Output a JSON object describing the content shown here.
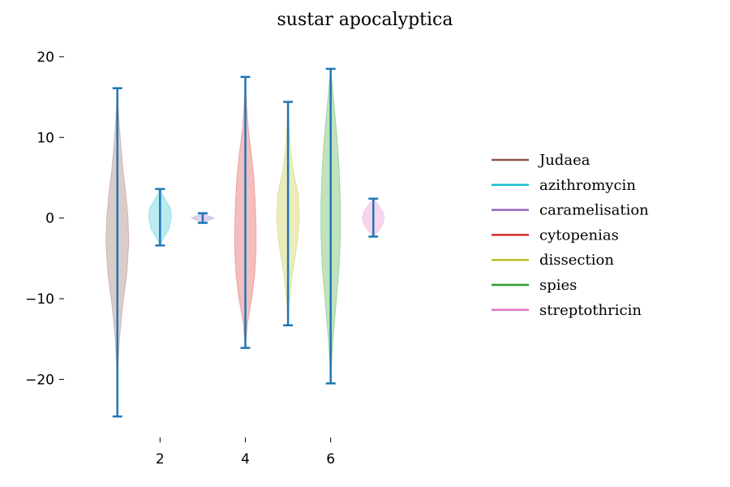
{
  "chart_data": {
    "type": "violin",
    "title": "sustar apocalyptica",
    "xlabel": "",
    "ylabel": "",
    "xlim": [
      0.15,
      7.85
    ],
    "ylim": [
      -26.2,
      21.7
    ],
    "xticks": [
      2,
      4,
      6
    ],
    "yticks": [
      20,
      10,
      0,
      -10,
      -20
    ],
    "ytick_labels": [
      "20",
      "10",
      "0",
      "−10",
      "−20"
    ],
    "legend_position": "right",
    "whisker_color": "#1f77b4",
    "series": [
      {
        "name": "Judaea",
        "position": 1,
        "color": "#8c564b",
        "min": -24.6,
        "max": 16.1,
        "profile": [
          [
            -24.6,
            0
          ],
          [
            -19,
            0.01
          ],
          [
            -15,
            0.05
          ],
          [
            -11,
            0.12
          ],
          [
            -7,
            0.22
          ],
          [
            -3,
            0.27
          ],
          [
            0,
            0.25
          ],
          [
            3,
            0.2
          ],
          [
            6,
            0.13
          ],
          [
            9,
            0.08
          ],
          [
            12,
            0.04
          ],
          [
            14,
            0.02
          ],
          [
            16.1,
            0
          ]
        ]
      },
      {
        "name": "azithromycin",
        "position": 2,
        "color": "#17becf",
        "min": -3.4,
        "max": 3.6,
        "profile": [
          [
            -3.4,
            0
          ],
          [
            -2.5,
            0.08
          ],
          [
            -1.5,
            0.2
          ],
          [
            0,
            0.27
          ],
          [
            1.2,
            0.25
          ],
          [
            2.2,
            0.14
          ],
          [
            3,
            0.05
          ],
          [
            3.6,
            0
          ]
        ]
      },
      {
        "name": "caramelisation",
        "position": 3,
        "color": "#9467bd",
        "min": -0.6,
        "max": 0.6,
        "profile": [
          [
            -0.6,
            0
          ],
          [
            -0.3,
            0.12
          ],
          [
            0,
            0.27
          ],
          [
            0.3,
            0.12
          ],
          [
            0.6,
            0
          ]
        ]
      },
      {
        "name": "cytopenias",
        "position": 4,
        "color": "#d62728",
        "min": -16.1,
        "max": 17.5,
        "profile": [
          [
            -16.1,
            0
          ],
          [
            -13,
            0.05
          ],
          [
            -10,
            0.15
          ],
          [
            -7,
            0.22
          ],
          [
            -4,
            0.25
          ],
          [
            -1,
            0.25
          ],
          [
            2,
            0.23
          ],
          [
            5,
            0.2
          ],
          [
            8,
            0.14
          ],
          [
            11,
            0.07
          ],
          [
            14,
            0.03
          ],
          [
            17.5,
            0
          ]
        ]
      },
      {
        "name": "dissection",
        "position": 5,
        "color": "#bcbd22",
        "min": -13.3,
        "max": 14.4,
        "profile": [
          [
            -13.3,
            0
          ],
          [
            -11,
            0.02
          ],
          [
            -7,
            0.1
          ],
          [
            -3,
            0.22
          ],
          [
            0,
            0.27
          ],
          [
            3,
            0.24
          ],
          [
            6,
            0.12
          ],
          [
            9,
            0.05
          ],
          [
            12,
            0.02
          ],
          [
            14.4,
            0
          ]
        ]
      },
      {
        "name": "spies",
        "position": 6,
        "color": "#2ca02c",
        "min": -20.5,
        "max": 18.5,
        "profile": [
          [
            -20.5,
            0
          ],
          [
            -16,
            0.04
          ],
          [
            -11,
            0.12
          ],
          [
            -6,
            0.2
          ],
          [
            -2,
            0.23
          ],
          [
            2,
            0.23
          ],
          [
            6,
            0.2
          ],
          [
            10,
            0.15
          ],
          [
            14,
            0.08
          ],
          [
            18.5,
            0
          ]
        ]
      },
      {
        "name": "streptothricin",
        "position": 7,
        "color": "#e377c2",
        "min": -2.3,
        "max": 2.4,
        "profile": [
          [
            -2.3,
            0
          ],
          [
            -1.6,
            0.12
          ],
          [
            -0.8,
            0.22
          ],
          [
            0,
            0.26
          ],
          [
            0.8,
            0.22
          ],
          [
            1.6,
            0.12
          ],
          [
            2.4,
            0
          ]
        ]
      }
    ]
  }
}
